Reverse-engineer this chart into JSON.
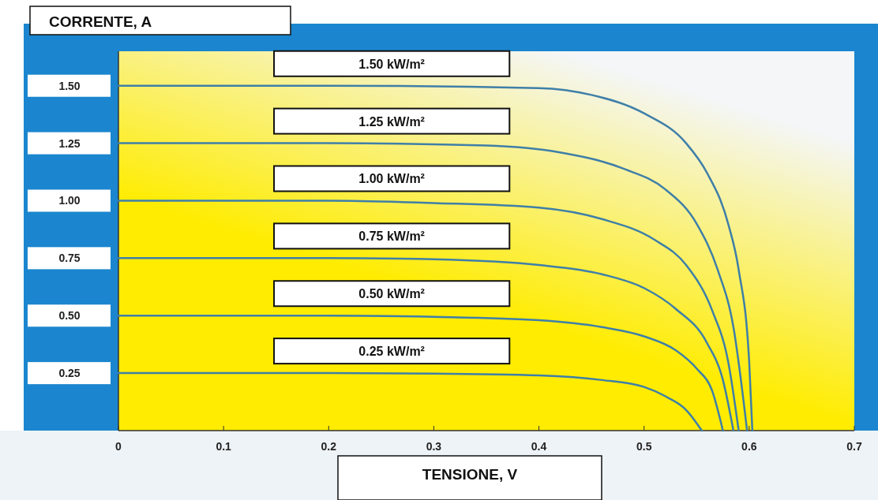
{
  "chart_data": {
    "type": "line",
    "xlabel": "TENSIONE, V",
    "ylabel": "CORRENTE, A",
    "xlim": [
      0,
      0.7
    ],
    "ylim": [
      0,
      1.65
    ],
    "xticks": [
      0,
      0.1,
      0.2,
      0.3,
      0.4,
      0.5,
      0.6,
      0.7
    ],
    "yticks": [
      {
        "value": 0.25,
        "label": "0.25"
      },
      {
        "value": 0.5,
        "label": "0.50"
      },
      {
        "value": 0.75,
        "label": "0.75"
      },
      {
        "value": 1,
        "label": "1.00"
      },
      {
        "value": 1.25,
        "label": "1.25"
      },
      {
        "value": 1.5,
        "label": "1.50"
      }
    ],
    "grid": false,
    "legend": false,
    "marker": "none",
    "line_style": "solid",
    "series": [
      {
        "name": "1.50 kW/m²",
        "color": "#3f7fa8",
        "x": [
          0,
          0.2,
          0.4,
          0.45,
          0.5,
          0.54,
          0.56,
          0.58,
          0.59,
          0.6,
          0.603
        ],
        "values": [
          1.5,
          1.5,
          1.49,
          1.46,
          1.38,
          1.25,
          1.12,
          0.9,
          0.7,
          0.3,
          0
        ]
      },
      {
        "name": "1.25 kW/m²",
        "color": "#3f7fa8",
        "x": [
          0,
          0.2,
          0.35,
          0.42,
          0.48,
          0.52,
          0.55,
          0.57,
          0.585,
          0.598
        ],
        "values": [
          1.25,
          1.25,
          1.24,
          1.21,
          1.14,
          1.05,
          0.9,
          0.7,
          0.45,
          0
        ]
      },
      {
        "name": "1.00 kW/m²",
        "color": "#3f7fa8",
        "x": [
          0,
          0.2,
          0.3,
          0.4,
          0.46,
          0.51,
          0.54,
          0.565,
          0.58,
          0.59
        ],
        "values": [
          1,
          1,
          0.99,
          0.97,
          0.92,
          0.83,
          0.72,
          0.52,
          0.3,
          0
        ]
      },
      {
        "name": "0.75 kW/m²",
        "color": "#3f7fa8",
        "x": [
          0,
          0.2,
          0.3,
          0.4,
          0.46,
          0.5,
          0.53,
          0.56,
          0.575,
          0.585
        ],
        "values": [
          0.75,
          0.75,
          0.745,
          0.72,
          0.68,
          0.62,
          0.53,
          0.38,
          0.22,
          0
        ]
      },
      {
        "name": "0.50 kW/m²",
        "color": "#3f7fa8",
        "x": [
          0,
          0.2,
          0.3,
          0.4,
          0.46,
          0.5,
          0.53,
          0.55,
          0.565,
          0.575
        ],
        "values": [
          0.5,
          0.5,
          0.495,
          0.48,
          0.45,
          0.41,
          0.35,
          0.27,
          0.17,
          0
        ]
      },
      {
        "name": "0.25 kW/m²",
        "color": "#3f7fa8",
        "x": [
          0,
          0.2,
          0.3,
          0.4,
          0.46,
          0.5,
          0.52,
          0.54,
          0.555
        ],
        "values": [
          0.25,
          0.25,
          0.248,
          0.24,
          0.22,
          0.19,
          0.15,
          0.09,
          0
        ]
      }
    ]
  }
}
